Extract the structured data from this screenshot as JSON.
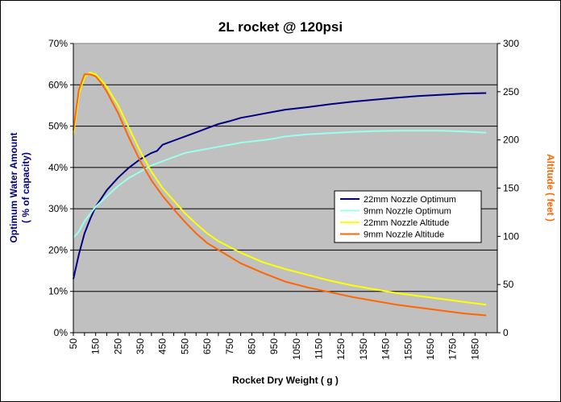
{
  "chart_data": {
    "type": "line",
    "title": "2L rocket @ 120psi",
    "xlabel": "Rocket Dry Weight ( g )",
    "ylabel": "Optimum Water Amount\n( % of capacity)",
    "y2label": "Altitude ( feet )",
    "x_ticks": [
      "50",
      "100",
      "150",
      "200",
      "250",
      "300",
      "350",
      "400",
      "450",
      "500",
      "550",
      "600",
      "650",
      "700",
      "750",
      "800",
      "850",
      "900",
      "950",
      "1000",
      "1050",
      "1100",
      "1150",
      "1200",
      "1250",
      "1300",
      "1350",
      "1400",
      "1450",
      "1500",
      "1550",
      "1600",
      "1650",
      "1700",
      "1750",
      "1800",
      "1850",
      "1900"
    ],
    "x_tick_labels": [
      "50",
      "150",
      "250",
      "350",
      "450",
      "550",
      "650",
      "750",
      "850",
      "950",
      "1050",
      "1150",
      "1250",
      "1350",
      "1450",
      "1550",
      "1650",
      "1750",
      "1850"
    ],
    "y_ticks": [
      "0%",
      "10%",
      "20%",
      "30%",
      "40%",
      "50%",
      "60%",
      "70%"
    ],
    "y2_ticks": [
      "0",
      "50",
      "100",
      "150",
      "200",
      "250",
      "300"
    ],
    "xlim": [
      50,
      1950
    ],
    "ylim": [
      0,
      70
    ],
    "y2lim": [
      0,
      300
    ],
    "grid": "horizontal",
    "plot_background": "#c0c0c0",
    "legend_position": "right",
    "colors": {
      "axis_left_title": "#000080",
      "axis_right_title": "#ff6600"
    },
    "series": [
      {
        "name": "22mm Nozzle Optimum",
        "axis": "left",
        "color": "#000080",
        "x": [
          50,
          75,
          100,
          125,
          150,
          200,
          250,
          300,
          350,
          400,
          425,
          450,
          475,
          500,
          550,
          600,
          650,
          700,
          750,
          800,
          850,
          900,
          950,
          1000,
          1100,
          1200,
          1300,
          1400,
          1500,
          1600,
          1700,
          1800,
          1900
        ],
        "values": [
          13,
          19,
          24,
          27.5,
          30.5,
          34.5,
          37.5,
          40,
          42,
          43.5,
          44,
          45.5,
          46,
          46.5,
          47.5,
          48.5,
          49.5,
          50.5,
          51.2,
          52,
          52.5,
          53,
          53.5,
          54,
          54.6,
          55.3,
          55.9,
          56.4,
          56.9,
          57.3,
          57.6,
          57.9,
          58
        ]
      },
      {
        "name": "9mm Nozzle Optimum",
        "axis": "left",
        "color": "#99ffee",
        "x": [
          50,
          75,
          100,
          150,
          200,
          250,
          300,
          350,
          400,
          450,
          500,
          550,
          600,
          650,
          700,
          750,
          800,
          850,
          900,
          950,
          1000,
          1100,
          1200,
          1300,
          1400,
          1500,
          1600,
          1700,
          1800,
          1900
        ],
        "values": [
          23,
          24.5,
          27,
          30.5,
          33,
          35.5,
          37.5,
          39,
          40.5,
          41.5,
          42.5,
          43.5,
          44,
          44.5,
          45,
          45.5,
          46,
          46.3,
          46.6,
          47,
          47.5,
          48,
          48.3,
          48.6,
          48.8,
          48.9,
          48.9,
          48.9,
          48.7,
          48.4
        ]
      },
      {
        "name": "22mm Nozzle Altitude",
        "axis": "right",
        "color": "#ffff00",
        "x": [
          50,
          75,
          100,
          125,
          150,
          175,
          200,
          250,
          300,
          350,
          400,
          450,
          500,
          550,
          600,
          650,
          700,
          750,
          800,
          900,
          1000,
          1100,
          1200,
          1300,
          1400,
          1500,
          1600,
          1700,
          1800,
          1900
        ],
        "values": [
          205,
          248,
          265,
          270,
          268,
          262,
          255,
          236,
          212,
          188,
          167,
          150,
          137,
          124,
          113,
          103,
          95,
          89,
          83,
          73,
          66,
          60,
          54,
          49,
          45,
          41,
          38,
          35,
          32,
          29
        ]
      },
      {
        "name": "9mm Nozzle Altitude",
        "axis": "right",
        "color": "#ff6600",
        "x": [
          50,
          75,
          100,
          125,
          150,
          175,
          200,
          250,
          300,
          350,
          400,
          450,
          500,
          550,
          600,
          650,
          700,
          750,
          800,
          900,
          1000,
          1100,
          1200,
          1300,
          1400,
          1500,
          1600,
          1700,
          1800,
          1900
        ],
        "values": [
          210,
          252,
          268,
          268,
          266,
          259,
          250,
          228,
          202,
          178,
          158,
          142,
          128,
          115,
          103,
          93,
          86,
          79,
          72,
          62,
          53,
          47,
          42,
          37,
          33,
          29,
          26,
          23,
          20,
          18
        ]
      }
    ]
  }
}
